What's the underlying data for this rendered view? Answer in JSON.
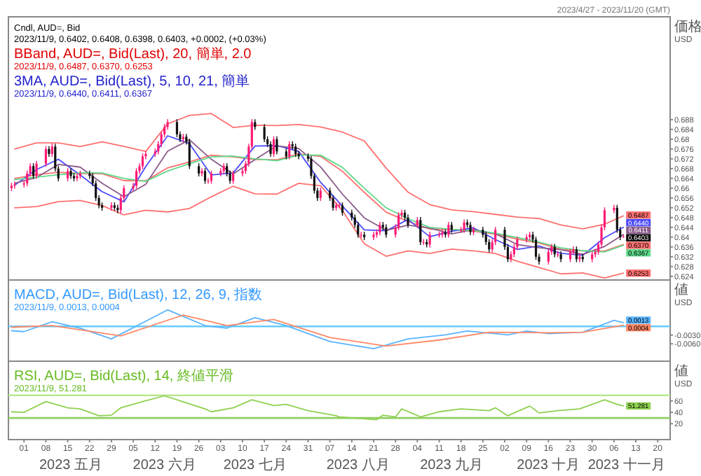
{
  "chart_data": [
    {
      "type": "candlestick",
      "subtitle": "2023/4/27 - 2023/11/20 (GMT)",
      "ylabel": "価格\nUSD",
      "tick_labels": "y",
      "xlim": [
        "2023-04-26",
        "2023-11-24"
      ],
      "ylim": [
        0.6225,
        0.73
      ],
      "yticks": [
        0.624,
        0.628,
        0.632,
        0.636,
        0.64,
        0.644,
        0.648,
        0.652,
        0.656,
        0.66,
        0.664,
        0.668,
        0.672,
        0.676,
        0.68,
        0.684,
        0.688
      ],
      "annotations": [
        "Cndl, AUD=, Bid",
        "2023/11/9, 0.6402, 0.6408, 0.6398, 0.6403, +0.0002, (+0.03%)",
        "BBand, AUD=, Bid(Last), 20, 簡単, 2.0",
        "2023/11/9, 0.6487, 0.6370, 0.6253",
        "3MA, AUD=, Bid(Last), 5, 10, 21, 簡単",
        "2023/11/9, 0.6440, 0.6411, 0.6367",
        {
          "text": "0.6403",
          "x": "2023-11-09",
          "y": 0.6403
        }
      ],
      "x": [
        "2023-04-27",
        "2023-04-28",
        "2023-05-01",
        "2023-05-02",
        "2023-05-03",
        "2023-05-04",
        "2023-05-05",
        "2023-05-08",
        "2023-05-09",
        "2023-05-10",
        "2023-05-11",
        "2023-05-12",
        "2023-05-15",
        "2023-05-16",
        "2023-05-17",
        "2023-05-18",
        "2023-05-19",
        "2023-05-22",
        "2023-05-23",
        "2023-05-24",
        "2023-05-25",
        "2023-05-26",
        "2023-05-29",
        "2023-05-30",
        "2023-05-31",
        "2023-06-01",
        "2023-06-02",
        "2023-06-05",
        "2023-06-06",
        "2023-06-07",
        "2023-06-08",
        "2023-06-09",
        "2023-06-12",
        "2023-06-13",
        "2023-06-14",
        "2023-06-15",
        "2023-06-16",
        "2023-06-19",
        "2023-06-20",
        "2023-06-21",
        "2023-06-22",
        "2023-06-23",
        "2023-06-26",
        "2023-06-27",
        "2023-06-28",
        "2023-06-29",
        "2023-06-30",
        "2023-07-03",
        "2023-07-04",
        "2023-07-05",
        "2023-07-06",
        "2023-07-07",
        "2023-07-10",
        "2023-07-11",
        "2023-07-12",
        "2023-07-13",
        "2023-07-14",
        "2023-07-17",
        "2023-07-18",
        "2023-07-19",
        "2023-07-20",
        "2023-07-21",
        "2023-07-24",
        "2023-07-25",
        "2023-07-26",
        "2023-07-27",
        "2023-07-28",
        "2023-07-31",
        "2023-08-01",
        "2023-08-02",
        "2023-08-03",
        "2023-08-04",
        "2023-08-07",
        "2023-08-08",
        "2023-08-09",
        "2023-08-10",
        "2023-08-11",
        "2023-08-14",
        "2023-08-15",
        "2023-08-16",
        "2023-08-17",
        "2023-08-18",
        "2023-08-21",
        "2023-08-22",
        "2023-08-23",
        "2023-08-24",
        "2023-08-25",
        "2023-08-28",
        "2023-08-29",
        "2023-08-30",
        "2023-08-31",
        "2023-09-01",
        "2023-09-04",
        "2023-09-05",
        "2023-09-06",
        "2023-09-07",
        "2023-09-08",
        "2023-09-11",
        "2023-09-12",
        "2023-09-13",
        "2023-09-14",
        "2023-09-15",
        "2023-09-18",
        "2023-09-19",
        "2023-09-20",
        "2023-09-21",
        "2023-09-22",
        "2023-09-25",
        "2023-09-26",
        "2023-09-27",
        "2023-09-28",
        "2023-09-29",
        "2023-10-02",
        "2023-10-03",
        "2023-10-04",
        "2023-10-05",
        "2023-10-06",
        "2023-10-09",
        "2023-10-10",
        "2023-10-11",
        "2023-10-12",
        "2023-10-13",
        "2023-10-16",
        "2023-10-17",
        "2023-10-18",
        "2023-10-19",
        "2023-10-20",
        "2023-10-23",
        "2023-10-24",
        "2023-10-25",
        "2023-10-26",
        "2023-10-27",
        "2023-10-30",
        "2023-10-31",
        "2023-11-01",
        "2023-11-02",
        "2023-11-03",
        "2023-11-06",
        "2023-11-07",
        "2023-11-08",
        "2023-11-09"
      ],
      "ohlc": [
        [
          0.66,
          0.6622,
          0.6588,
          0.661
        ],
        [
          0.661,
          0.6627,
          0.6598,
          0.6615
        ],
        [
          0.6615,
          0.6632,
          0.6603,
          0.662
        ],
        [
          0.662,
          0.6672,
          0.6608,
          0.666
        ],
        [
          0.666,
          0.6702,
          0.6648,
          0.669
        ],
        [
          0.669,
          0.6702,
          0.6638,
          0.665
        ],
        [
          0.665,
          0.6712,
          0.6638,
          0.67
        ],
        [
          0.67,
          0.6772,
          0.6688,
          0.676
        ],
        [
          0.676,
          0.6772,
          0.6728,
          0.674
        ],
        [
          0.674,
          0.6782,
          0.6728,
          0.677
        ],
        [
          0.677,
          0.6782,
          0.6668,
          0.668
        ],
        [
          0.668,
          0.6692,
          0.6628,
          0.664
        ],
        [
          0.664,
          0.6682,
          0.6628,
          0.667
        ],
        [
          0.667,
          0.6682,
          0.6638,
          0.665
        ],
        [
          0.665,
          0.6662,
          0.6628,
          0.664
        ],
        [
          0.664,
          0.6662,
          0.6628,
          0.665
        ],
        [
          0.665,
          0.6672,
          0.6638,
          0.666
        ],
        [
          0.666,
          0.6672,
          0.6638,
          0.665
        ],
        [
          0.665,
          0.6662,
          0.6608,
          0.662
        ],
        [
          0.662,
          0.6632,
          0.6548,
          0.656
        ],
        [
          0.656,
          0.6572,
          0.6518,
          0.653
        ],
        [
          0.653,
          0.6542,
          0.6508,
          0.652
        ],
        [
          0.652,
          0.6542,
          0.6508,
          0.653
        ],
        [
          0.653,
          0.6542,
          0.6508,
          0.652
        ],
        [
          0.652,
          0.6532,
          0.6498,
          0.651
        ],
        [
          0.651,
          0.6572,
          0.6498,
          0.656
        ],
        [
          0.656,
          0.6612,
          0.6548,
          0.66
        ],
        [
          0.66,
          0.6622,
          0.6588,
          0.661
        ],
        [
          0.661,
          0.6682,
          0.6598,
          0.667
        ],
        [
          0.667,
          0.6702,
          0.6658,
          0.669
        ],
        [
          0.669,
          0.6742,
          0.6678,
          0.673
        ],
        [
          0.673,
          0.6752,
          0.6718,
          0.674
        ],
        [
          0.674,
          0.6762,
          0.6728,
          0.675
        ],
        [
          0.675,
          0.6792,
          0.6738,
          0.678
        ],
        [
          0.678,
          0.6832,
          0.6768,
          0.682
        ],
        [
          0.682,
          0.6862,
          0.6808,
          0.685
        ],
        [
          0.685,
          0.6882,
          0.6838,
          0.687
        ],
        [
          0.687,
          0.6882,
          0.6808,
          0.682
        ],
        [
          0.682,
          0.6832,
          0.6788,
          0.68
        ],
        [
          0.68,
          0.6822,
          0.6788,
          0.681
        ],
        [
          0.681,
          0.6822,
          0.6778,
          0.679
        ],
        [
          0.679,
          0.6802,
          0.6678,
          0.669
        ],
        [
          0.669,
          0.6702,
          0.6648,
          0.666
        ],
        [
          0.666,
          0.6682,
          0.6648,
          0.667
        ],
        [
          0.667,
          0.6682,
          0.6618,
          0.663
        ],
        [
          0.663,
          0.6642,
          0.6618,
          0.663
        ],
        [
          0.663,
          0.6672,
          0.6618,
          0.666
        ],
        [
          0.666,
          0.6682,
          0.6648,
          0.667
        ],
        [
          0.667,
          0.6702,
          0.6658,
          0.669
        ],
        [
          0.669,
          0.6702,
          0.6648,
          0.666
        ],
        [
          0.666,
          0.6672,
          0.6618,
          0.663
        ],
        [
          0.663,
          0.6672,
          0.6618,
          0.666
        ],
        [
          0.666,
          0.6682,
          0.6648,
          0.667
        ],
        [
          0.667,
          0.6712,
          0.6658,
          0.67
        ],
        [
          0.67,
          0.6782,
          0.6688,
          0.677
        ],
        [
          0.677,
          0.6882,
          0.6758,
          0.687
        ],
        [
          0.687,
          0.6882,
          0.6838,
          0.685
        ],
        [
          0.685,
          0.6862,
          0.6788,
          0.68
        ],
        [
          0.68,
          0.6812,
          0.6768,
          0.678
        ],
        [
          0.678,
          0.6792,
          0.6728,
          0.674
        ],
        [
          0.674,
          0.6812,
          0.6728,
          0.68
        ],
        [
          0.68,
          0.6812,
          0.6738,
          0.675
        ],
        [
          0.675,
          0.6762,
          0.6718,
          0.673
        ],
        [
          0.673,
          0.6792,
          0.6718,
          0.678
        ],
        [
          0.678,
          0.6792,
          0.6758,
          0.677
        ],
        [
          0.677,
          0.6782,
          0.6728,
          0.674
        ],
        [
          0.674,
          0.6752,
          0.6718,
          0.673
        ],
        [
          0.673,
          0.6742,
          0.6708,
          0.672
        ],
        [
          0.672,
          0.6732,
          0.6638,
          0.665
        ],
        [
          0.665,
          0.6662,
          0.6578,
          0.659
        ],
        [
          0.659,
          0.6602,
          0.6548,
          0.656
        ],
        [
          0.656,
          0.6602,
          0.6548,
          0.659
        ],
        [
          0.659,
          0.6602,
          0.6548,
          0.656
        ],
        [
          0.656,
          0.6572,
          0.6508,
          0.652
        ],
        [
          0.652,
          0.6542,
          0.6508,
          0.653
        ],
        [
          0.653,
          0.6542,
          0.6518,
          0.653
        ],
        [
          0.653,
          0.6542,
          0.6488,
          0.65
        ],
        [
          0.65,
          0.6512,
          0.6468,
          0.648
        ],
        [
          0.648,
          0.6492,
          0.6438,
          0.645
        ],
        [
          0.645,
          0.6462,
          0.6398,
          0.641
        ],
        [
          0.641,
          0.6422,
          0.6398,
          0.641
        ],
        [
          0.641,
          0.6422,
          0.6388,
          0.64
        ],
        [
          0.64,
          0.6422,
          0.6388,
          0.641
        ],
        [
          0.641,
          0.6432,
          0.6398,
          0.642
        ],
        [
          0.642,
          0.6462,
          0.6408,
          0.645
        ],
        [
          0.645,
          0.6462,
          0.6428,
          0.644
        ],
        [
          0.644,
          0.6452,
          0.6398,
          0.641
        ],
        [
          0.641,
          0.6452,
          0.6398,
          0.644
        ],
        [
          0.644,
          0.6502,
          0.6428,
          0.649
        ],
        [
          0.649,
          0.6512,
          0.6478,
          0.65
        ],
        [
          0.65,
          0.6512,
          0.6468,
          0.648
        ],
        [
          0.648,
          0.6492,
          0.6438,
          0.645
        ],
        [
          0.645,
          0.6482,
          0.6438,
          0.647
        ],
        [
          0.647,
          0.6482,
          0.6368,
          0.638
        ],
        [
          0.638,
          0.6392,
          0.6368,
          0.638
        ],
        [
          0.638,
          0.6392,
          0.6358,
          0.637
        ],
        [
          0.637,
          0.6422,
          0.6358,
          0.641
        ],
        [
          0.641,
          0.6422,
          0.6398,
          0.641
        ],
        [
          0.641,
          0.6432,
          0.6398,
          0.642
        ],
        [
          0.642,
          0.6432,
          0.6398,
          0.641
        ],
        [
          0.641,
          0.6462,
          0.6398,
          0.645
        ],
        [
          0.645,
          0.6462,
          0.6418,
          0.643
        ],
        [
          0.643,
          0.6442,
          0.6418,
          0.643
        ],
        [
          0.643,
          0.6472,
          0.6418,
          0.646
        ],
        [
          0.646,
          0.6472,
          0.6438,
          0.645
        ],
        [
          0.645,
          0.6462,
          0.6408,
          0.642
        ],
        [
          0.642,
          0.6442,
          0.6408,
          0.643
        ],
        [
          0.643,
          0.6442,
          0.6398,
          0.641
        ],
        [
          0.641,
          0.6422,
          0.6368,
          0.638
        ],
        [
          0.638,
          0.6392,
          0.6338,
          0.635
        ],
        [
          0.635,
          0.6392,
          0.6338,
          0.638
        ],
        [
          0.638,
          0.6442,
          0.6368,
          0.643
        ],
        [
          0.643,
          0.6442,
          0.6348,
          0.636
        ],
        [
          0.636,
          0.6372,
          0.6298,
          0.631
        ],
        [
          0.631,
          0.6342,
          0.6298,
          0.633
        ],
        [
          0.633,
          0.6372,
          0.6318,
          0.636
        ],
        [
          0.636,
          0.6402,
          0.6348,
          0.639
        ],
        [
          0.639,
          0.6412,
          0.6378,
          0.64
        ],
        [
          0.64,
          0.6422,
          0.6388,
          0.641
        ],
        [
          0.641,
          0.6422,
          0.6378,
          0.639
        ],
        [
          0.639,
          0.6402,
          0.6308,
          0.632
        ],
        [
          0.632,
          0.6332,
          0.6288,
          0.63
        ],
        [
          0.63,
          0.6352,
          0.6288,
          0.634
        ],
        [
          0.634,
          0.6372,
          0.6328,
          0.636
        ],
        [
          0.636,
          0.6372,
          0.6318,
          0.633
        ],
        [
          0.633,
          0.6342,
          0.6318,
          0.633
        ],
        [
          0.633,
          0.6342,
          0.6298,
          0.631
        ],
        [
          0.631,
          0.6352,
          0.6298,
          0.634
        ],
        [
          0.634,
          0.6362,
          0.6328,
          0.635
        ],
        [
          0.635,
          0.6362,
          0.6298,
          0.631
        ],
        [
          0.631,
          0.6332,
          0.6298,
          0.632
        ],
        [
          0.632,
          0.6332,
          0.6298,
          0.631
        ],
        [
          0.631,
          0.6342,
          0.6298,
          0.633
        ],
        [
          0.633,
          0.6352,
          0.6318,
          0.634
        ],
        [
          0.634,
          0.6382,
          0.6328,
          0.637
        ],
        [
          0.637,
          0.6452,
          0.6358,
          0.644
        ],
        [
          0.644,
          0.6522,
          0.6428,
          0.651
        ],
        [
          0.651,
          0.6532,
          0.6498,
          0.652
        ],
        [
          0.652,
          0.6532,
          0.6418,
          0.643
        ],
        [
          0.643,
          0.6442,
          0.6388,
          0.64
        ],
        [
          0.6402,
          0.6408,
          0.6398,
          0.6403
        ]
      ],
      "series": [
        {
          "type": "line",
          "color": "#ff7070",
          "x": [
            "2023-04-28",
            "2023-05-05",
            "2023-05-12",
            "2023-05-19",
            "2023-05-26",
            "2023-06-02",
            "2023-06-09",
            "2023-06-16",
            "2023-06-23",
            "2023-06-30",
            "2023-07-07",
            "2023-07-14",
            "2023-07-21",
            "2023-07-28",
            "2023-08-04",
            "2023-08-11",
            "2023-08-18",
            "2023-08-25",
            "2023-09-01",
            "2023-09-08",
            "2023-09-15",
            "2023-09-22",
            "2023-09-29",
            "2023-10-06",
            "2023-10-13",
            "2023-10-20",
            "2023-10-27",
            "2023-11-03",
            "2023-11-09"
          ],
          "values": [
            0.676,
            0.6785,
            0.6785,
            0.677,
            0.6789,
            0.6771,
            0.675,
            0.6863,
            0.6897,
            0.6905,
            0.6848,
            0.6857,
            0.6856,
            0.686,
            0.685,
            0.6829,
            0.6793,
            0.6682,
            0.6584,
            0.6533,
            0.6511,
            0.6504,
            0.6493,
            0.6482,
            0.6476,
            0.645,
            0.6434,
            0.6453,
            0.6487
          ],
          "value_labels": [
            null,
            null,
            null,
            null,
            null,
            null,
            null,
            null,
            null,
            null,
            null,
            null,
            null,
            null,
            null,
            null,
            null,
            null,
            null,
            null,
            null,
            null,
            null,
            null,
            null,
            null,
            null,
            null,
            "0.6487"
          ]
        },
        {
          "type": "line",
          "color": "#ff7070",
          "x": [
            "2023-04-28",
            "2023-05-05",
            "2023-05-12",
            "2023-05-19",
            "2023-05-26",
            "2023-06-02",
            "2023-06-09",
            "2023-06-16",
            "2023-06-23",
            "2023-06-30",
            "2023-07-07",
            "2023-07-14",
            "2023-07-21",
            "2023-07-28",
            "2023-08-04",
            "2023-08-11",
            "2023-08-18",
            "2023-08-25",
            "2023-09-01",
            "2023-09-08",
            "2023-09-15",
            "2023-09-22",
            "2023-09-29",
            "2023-10-06",
            "2023-10-13",
            "2023-10-20",
            "2023-10-27",
            "2023-11-03",
            "2023-11-09"
          ],
          "values": [
            0.664,
            0.6655,
            0.6665,
            0.666,
            0.6659,
            0.6631,
            0.663,
            0.6683,
            0.6707,
            0.6735,
            0.6728,
            0.6717,
            0.6716,
            0.674,
            0.673,
            0.6669,
            0.6583,
            0.6502,
            0.6464,
            0.6433,
            0.6431,
            0.6424,
            0.6413,
            0.6392,
            0.6376,
            0.635,
            0.6344,
            0.6343,
            0.637
          ],
          "value_labels": [
            null,
            null,
            null,
            null,
            null,
            null,
            null,
            null,
            null,
            null,
            null,
            null,
            null,
            null,
            null,
            null,
            null,
            null,
            null,
            null,
            null,
            null,
            null,
            null,
            null,
            null,
            null,
            null,
            "0.6370"
          ]
        },
        {
          "type": "line",
          "color": "#ff7070",
          "x": [
            "2023-04-28",
            "2023-05-05",
            "2023-05-12",
            "2023-05-19",
            "2023-05-26",
            "2023-06-02",
            "2023-06-09",
            "2023-06-16",
            "2023-06-23",
            "2023-06-30",
            "2023-07-07",
            "2023-07-14",
            "2023-07-21",
            "2023-07-28",
            "2023-08-04",
            "2023-08-11",
            "2023-08-18",
            "2023-08-25",
            "2023-09-01",
            "2023-09-08",
            "2023-09-15",
            "2023-09-22",
            "2023-09-29",
            "2023-10-06",
            "2023-10-13",
            "2023-10-20",
            "2023-10-27",
            "2023-11-03",
            "2023-11-09"
          ],
          "values": [
            0.652,
            0.6525,
            0.6545,
            0.655,
            0.6529,
            0.6491,
            0.651,
            0.6503,
            0.6517,
            0.6565,
            0.6608,
            0.6577,
            0.6576,
            0.662,
            0.661,
            0.6509,
            0.6373,
            0.6322,
            0.6344,
            0.6333,
            0.6351,
            0.6344,
            0.6333,
            0.6302,
            0.6276,
            0.625,
            0.6254,
            0.6233,
            0.6253
          ],
          "value_labels": [
            null,
            null,
            null,
            null,
            null,
            null,
            null,
            null,
            null,
            null,
            null,
            null,
            null,
            null,
            null,
            null,
            null,
            null,
            null,
            null,
            null,
            null,
            null,
            null,
            null,
            null,
            null,
            null,
            "0.6253"
          ]
        },
        {
          "type": "line",
          "color": "#4b4bff",
          "x": [
            "2023-04-28",
            "2023-05-05",
            "2023-05-12",
            "2023-05-19",
            "2023-05-26",
            "2023-06-02",
            "2023-06-09",
            "2023-06-16",
            "2023-06-23",
            "2023-06-30",
            "2023-07-07",
            "2023-07-14",
            "2023-07-21",
            "2023-07-28",
            "2023-08-04",
            "2023-08-11",
            "2023-08-18",
            "2023-08-25",
            "2023-09-01",
            "2023-09-08",
            "2023-09-15",
            "2023-09-22",
            "2023-09-29",
            "2023-10-06",
            "2023-10-13",
            "2023-10-20",
            "2023-10-27",
            "2023-11-03",
            "2023-11-09"
          ],
          "values": [
            0.6612,
            0.6676,
            0.6718,
            0.6654,
            0.6586,
            0.6544,
            0.6688,
            0.6814,
            0.6782,
            0.6654,
            0.6662,
            0.6772,
            0.6774,
            0.675,
            0.6624,
            0.6527,
            0.643,
            0.6426,
            0.6472,
            0.6402,
            0.6424,
            0.6438,
            0.639,
            0.635,
            0.6364,
            0.6334,
            0.6326,
            0.6398,
            0.644
          ],
          "value_labels": [
            null,
            null,
            null,
            null,
            null,
            null,
            null,
            null,
            null,
            null,
            null,
            null,
            null,
            null,
            null,
            null,
            null,
            null,
            null,
            null,
            null,
            null,
            null,
            null,
            null,
            null,
            null,
            null,
            "0.6440"
          ]
        },
        {
          "type": "line",
          "color": "#8a5a8a",
          "x": [
            "2023-04-28",
            "2023-05-05",
            "2023-05-12",
            "2023-05-19",
            "2023-05-26",
            "2023-06-02",
            "2023-06-09",
            "2023-06-16",
            "2023-06-23",
            "2023-06-30",
            "2023-07-07",
            "2023-07-14",
            "2023-07-21",
            "2023-07-28",
            "2023-08-04",
            "2023-08-11",
            "2023-08-18",
            "2023-08-25",
            "2023-09-01",
            "2023-09-08",
            "2023-09-15",
            "2023-09-22",
            "2023-09-29",
            "2023-10-06",
            "2023-10-13",
            "2023-10-20",
            "2023-10-27",
            "2023-11-03",
            "2023-11-09"
          ],
          "values": [
            0.662,
            0.6644,
            0.6697,
            0.6686,
            0.662,
            0.6565,
            0.6616,
            0.6751,
            0.6798,
            0.6718,
            0.6658,
            0.6717,
            0.6773,
            0.6762,
            0.6687,
            0.6576,
            0.6479,
            0.6428,
            0.6449,
            0.6437,
            0.6413,
            0.6431,
            0.6414,
            0.637,
            0.6357,
            0.6349,
            0.633,
            0.6362,
            0.6411
          ],
          "value_labels": [
            null,
            null,
            null,
            null,
            null,
            null,
            null,
            null,
            null,
            null,
            null,
            null,
            null,
            null,
            null,
            null,
            null,
            null,
            null,
            null,
            null,
            null,
            null,
            null,
            null,
            null,
            null,
            null,
            "0.6411"
          ]
        },
        {
          "type": "line",
          "color": "#5fd98a",
          "x": [
            "2023-04-28",
            "2023-05-05",
            "2023-05-12",
            "2023-05-19",
            "2023-05-26",
            "2023-06-02",
            "2023-06-09",
            "2023-06-16",
            "2023-06-23",
            "2023-06-30",
            "2023-07-07",
            "2023-07-14",
            "2023-07-21",
            "2023-07-28",
            "2023-08-04",
            "2023-08-11",
            "2023-08-18",
            "2023-08-25",
            "2023-09-01",
            "2023-09-08",
            "2023-09-15",
            "2023-09-22",
            "2023-09-29",
            "2023-10-06",
            "2023-10-13",
            "2023-10-20",
            "2023-10-27",
            "2023-11-03",
            "2023-11-09"
          ],
          "values": [
            0.6635,
            0.6645,
            0.6655,
            0.6662,
            0.6662,
            0.664,
            0.6628,
            0.667,
            0.67,
            0.6728,
            0.6731,
            0.672,
            0.6712,
            0.6735,
            0.6735,
            0.6685,
            0.66,
            0.652,
            0.6475,
            0.644,
            0.6432,
            0.6427,
            0.6416,
            0.6398,
            0.638,
            0.6356,
            0.6345,
            0.634,
            0.6367
          ],
          "value_labels": [
            null,
            null,
            null,
            null,
            null,
            null,
            null,
            null,
            null,
            null,
            null,
            null,
            null,
            null,
            null,
            null,
            null,
            null,
            null,
            null,
            null,
            null,
            null,
            null,
            null,
            null,
            null,
            null,
            "0.6367"
          ]
        }
      ]
    },
    {
      "type": "line",
      "ylabel": "値\nUSD",
      "tick_labels": "y",
      "xlim": [
        "2023-04-26",
        "2023-11-24"
      ],
      "ylim": [
        -0.012,
        0.016
      ],
      "yticks": [
        {
          "value": -0.003,
          "label": "-0.0030"
        },
        {
          "value": -0.006,
          "label": "-0.0060"
        }
      ],
      "annotations": [
        "MACD, AUD=, Bid(Last), 12, 26, 9, 指数",
        "2023/11/9, 0.0013, 0.0004"
      ],
      "ref_lines": [
        {
          "axis": "y",
          "value": 0,
          "color": "#66ccff"
        }
      ],
      "series": [
        {
          "color": "#5ab4ff",
          "x": [
            "2023-04-27",
            "2023-05-01",
            "2023-05-10",
            "2023-05-19",
            "2023-05-29",
            "2023-06-16",
            "2023-06-28",
            "2023-07-05",
            "2023-07-14",
            "2023-07-24",
            "2023-08-07",
            "2023-08-21",
            "2023-09-01",
            "2023-09-13",
            "2023-09-20",
            "2023-10-03",
            "2023-10-09",
            "2023-10-16",
            "2023-10-27",
            "2023-11-06",
            "2023-11-09"
          ],
          "values": [
            -0.0015,
            -0.0018,
            0.0016,
            -0.0006,
            -0.0043,
            0.0057,
            0.0003,
            -0.0006,
            0.003,
            0.0003,
            -0.0052,
            -0.0077,
            -0.0043,
            -0.0029,
            -0.0016,
            -0.0029,
            -0.0016,
            -0.0025,
            -0.002,
            0.0021,
            0.0013
          ],
          "value_labels": [
            null,
            null,
            null,
            null,
            null,
            null,
            null,
            null,
            null,
            null,
            null,
            null,
            null,
            null,
            null,
            null,
            null,
            null,
            null,
            null,
            "0.0013"
          ]
        },
        {
          "color": "#ff8866",
          "x": [
            "2023-04-27",
            "2023-05-10",
            "2023-06-01",
            "2023-06-21",
            "2023-07-05",
            "2023-07-20",
            "2023-08-07",
            "2023-08-25",
            "2023-09-11",
            "2023-09-27",
            "2023-10-16",
            "2023-10-27",
            "2023-11-09"
          ],
          "values": [
            -0.0003,
            0.0003,
            -0.0033,
            0.0039,
            0.0003,
            0.0024,
            -0.0038,
            -0.0068,
            -0.0047,
            -0.002,
            -0.0022,
            -0.002,
            0.0004
          ],
          "value_labels": [
            null,
            null,
            null,
            null,
            null,
            null,
            null,
            null,
            null,
            null,
            null,
            null,
            "0.0004"
          ]
        }
      ]
    },
    {
      "type": "line",
      "ylabel": "値\nUSD",
      "xlim": [
        "2023-04-26",
        "2023-11-24"
      ],
      "ylim": [
        -8,
        130
      ],
      "yticks": [
        20,
        40,
        60
      ],
      "annotations": [
        "RSI, AUD=, Bid(Last), 14, 終値平滑",
        "2023/11/9, 51.281"
      ],
      "ref_lines": [
        {
          "axis": "y",
          "value": 70,
          "color": "#b8e890"
        },
        {
          "axis": "y",
          "value": 30,
          "color": "#8fd060"
        }
      ],
      "xticks": [
        {
          "value": "2023-05-01",
          "label": "01"
        },
        {
          "value": "2023-05-08",
          "label": "08"
        },
        {
          "value": "2023-05-15",
          "label": "15"
        },
        {
          "value": "2023-05-22",
          "label": "22"
        },
        {
          "value": "2023-05-29",
          "label": "29"
        },
        {
          "value": "2023-06-05",
          "label": "05"
        },
        {
          "value": "2023-06-12",
          "label": "12"
        },
        {
          "value": "2023-06-19",
          "label": "19"
        },
        {
          "value": "2023-06-26",
          "label": "26"
        },
        {
          "value": "2023-07-03",
          "label": "03"
        },
        {
          "value": "2023-07-10",
          "label": "10"
        },
        {
          "value": "2023-07-17",
          "label": "17"
        },
        {
          "value": "2023-07-24",
          "label": "24"
        },
        {
          "value": "2023-07-31",
          "label": "31"
        },
        {
          "value": "2023-08-07",
          "label": "07"
        },
        {
          "value": "2023-08-14",
          "label": "14"
        },
        {
          "value": "2023-08-21",
          "label": "21"
        },
        {
          "value": "2023-08-28",
          "label": "28"
        },
        {
          "value": "2023-09-04",
          "label": "04"
        },
        {
          "value": "2023-09-11",
          "label": "11"
        },
        {
          "value": "2023-09-18",
          "label": "18"
        },
        {
          "value": "2023-09-25",
          "label": "25"
        },
        {
          "value": "2023-10-02",
          "label": "02"
        },
        {
          "value": "2023-10-09",
          "label": "09"
        },
        {
          "value": "2023-10-16",
          "label": "16"
        },
        {
          "value": "2023-10-23",
          "label": "23"
        },
        {
          "value": "2023-10-30",
          "label": "30"
        },
        {
          "value": "2023-11-06",
          "label": "06"
        },
        {
          "value": "2023-11-13",
          "label": "13"
        },
        {
          "value": "2023-11-20",
          "label": "20"
        }
      ],
      "x2lim": [
        "2023-04-26",
        "2023-11-24"
      ],
      "x2ticks": [
        {
          "value": "2023-05-16",
          "label": "2023 五月"
        },
        {
          "value": "2023-06-15",
          "label": "2023 六月"
        },
        {
          "value": "2023-07-14",
          "label": "2023 七月"
        },
        {
          "value": "2023-08-16",
          "label": "2023 八月"
        },
        {
          "value": "2023-09-15",
          "label": "2023 九月"
        },
        {
          "value": "2023-10-16",
          "label": "2023 十月"
        },
        {
          "value": "2023-11-10",
          "label": "2023 十一月"
        }
      ],
      "series": [
        {
          "color": "#8fd050",
          "x": [
            "2023-04-27",
            "2023-05-01",
            "2023-05-08",
            "2023-05-15",
            "2023-05-19",
            "2023-05-25",
            "2023-05-29",
            "2023-06-01",
            "2023-06-08",
            "2023-06-15",
            "2023-06-19",
            "2023-06-28",
            "2023-06-30",
            "2023-07-07",
            "2023-07-13",
            "2023-07-20",
            "2023-07-24",
            "2023-07-31",
            "2023-08-04",
            "2023-08-09",
            "2023-08-10",
            "2023-08-22",
            "2023-08-24",
            "2023-08-28",
            "2023-08-30",
            "2023-09-05",
            "2023-09-11",
            "2023-09-18",
            "2023-09-27",
            "2023-09-29",
            "2023-10-03",
            "2023-10-10",
            "2023-10-13",
            "2023-10-19",
            "2023-10-26",
            "2023-11-03",
            "2023-11-07",
            "2023-11-09"
          ],
          "values": [
            41,
            40,
            59,
            48,
            46,
            34,
            35,
            48,
            59,
            69,
            62,
            46,
            41,
            48,
            62,
            52,
            54,
            43,
            39,
            34,
            32,
            27,
            35,
            32,
            46,
            32,
            41,
            46,
            43,
            48,
            34,
            51,
            39,
            43,
            46,
            62,
            54,
            51.281
          ],
          "value_labels": [
            null,
            null,
            null,
            null,
            null,
            null,
            null,
            null,
            null,
            null,
            null,
            null,
            null,
            null,
            null,
            null,
            null,
            null,
            null,
            null,
            null,
            null,
            null,
            null,
            null,
            null,
            null,
            null,
            null,
            null,
            null,
            null,
            null,
            null,
            null,
            null,
            null,
            "51.281"
          ]
        }
      ]
    }
  ]
}
